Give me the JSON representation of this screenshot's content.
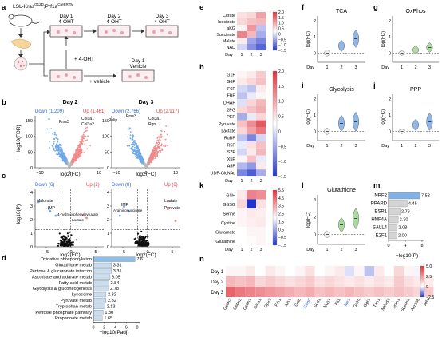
{
  "panel_labels": [
    "a",
    "b",
    "c",
    "d",
    "e",
    "f",
    "g",
    "h",
    "i",
    "j",
    "k",
    "l",
    "m",
    "n"
  ],
  "panel_a": {
    "mouse_genotype": "LSL-Kras",
    "genotype_sup1": "G12D",
    "genotype_mid": ";Prf1a",
    "genotype_sup2": "CreERTM",
    "day1": "Day 1",
    "day2": "Day 2",
    "day3": "Day 3",
    "treat": "4-OHT",
    "plus_4oht": "+ 4-OHT",
    "plus_vehicle": "+ vehicle",
    "vehicle": "Vehicle"
  },
  "panel_b": {
    "title_left": "Day 2",
    "title_right": "Day 3",
    "down_left": "Down (1,209)",
    "up_left": "Up (1,461)",
    "down_right": "Down (2,766)",
    "up_right": "Up (2,917)",
    "genes_left": [
      "Prss3",
      "Col1a1",
      "Col3a2"
    ],
    "genes_right": [
      "Pnlip",
      "Prss3",
      "Col3a1",
      "Rgn"
    ],
    "ylabel": "−log10(FDR)",
    "xlabel": "log2(FC)",
    "xticks": [
      "−10",
      "0",
      "10"
    ],
    "yticks": [
      "0",
      "50",
      "100",
      "150"
    ]
  },
  "panel_c": {
    "down_left": "Down (6)",
    "up_left": "Up (2)",
    "down_right": "Down (8)",
    "up_right": "Up (6)",
    "labels_left": [
      "Malonate",
      "IMP",
      "4-hydroxyphenylpyruvate",
      "Lactate"
    ],
    "labels_right": [
      "Argininosuccinate",
      "IMP",
      "Lactate",
      "Pyruvate"
    ],
    "ylabel": "−log10(P)",
    "xlabel": "log2(FC)",
    "xticks_left": [
      "−5",
      "0",
      "5"
    ],
    "xticks_right": [
      "−5",
      "0",
      "5"
    ],
    "yticks": [
      "0",
      "1",
      "2",
      "3",
      "4"
    ]
  },
  "panel_d": {
    "xlabel": "−log10(Padj)",
    "xticks": [
      "0",
      "2",
      "4",
      "6",
      "8"
    ],
    "chart_data": {
      "type": "bar",
      "categories": [
        "Oxidative phosphorylation",
        "Glutathione metab",
        "Pentose & glucuronate intercon",
        "Ascorbate and aldarate metab",
        "Fatty acid metab",
        "Glycolysis & gluconeogenesis",
        "Lysosome",
        "Pyruvate metab",
        "Tryptophan metab",
        "Pentose phosphate pathway",
        "Propanoate metab"
      ],
      "values": [
        7.61,
        3.31,
        3.31,
        3.05,
        2.84,
        2.78,
        2.32,
        2.32,
        2.13,
        1.8,
        1.65
      ],
      "value_labels": [
        "7.61",
        "3.31",
        "3.31",
        "3.05",
        "2.84",
        "2.78",
        "2.32",
        "2.32",
        "2.13",
        "1.80",
        "1.65"
      ],
      "xlim": [
        0,
        8
      ]
    }
  },
  "panel_e": {
    "rows": [
      "Citrate",
      "Isocitrate",
      "aKG",
      "Succinate",
      "Malate",
      "NAD"
    ],
    "xlabel": "Day",
    "days": [
      "1",
      "2",
      "3"
    ],
    "cbar_ticks": [
      "2.0",
      "1.5",
      "1.0",
      "0.5",
      "0",
      "−0.5",
      "−1.0",
      "−1.5"
    ]
  },
  "panel_h": {
    "rows": [
      "G1P",
      "G6P",
      "F6P",
      "FBP",
      "DHAP",
      "2PG",
      "PEP",
      "Pyruvate",
      "Lactate",
      "RuBP",
      "R5P",
      "S7P",
      "X5P",
      "A5P",
      "UDP-GlcNAc"
    ],
    "xlabel": "Day",
    "days": [
      "1",
      "2",
      "3"
    ],
    "cbar_ticks": [
      "2.0",
      "1.5",
      "1.0",
      "0.5",
      "0",
      "−0.5",
      "−1.0",
      "−1.5"
    ]
  },
  "panel_k": {
    "rows": [
      "GSH",
      "GSSG",
      "Serine",
      "Cystine",
      "Glutamate",
      "Glutamine"
    ],
    "xlabel": "Day",
    "days": [
      "1",
      "2",
      "3"
    ],
    "cbar_ticks": [
      "5.5",
      "4.5",
      "3.5",
      "2.5",
      "1.5",
      "0.5",
      "−0.5",
      "−1.5"
    ]
  },
  "violins": {
    "f": {
      "title": "TCA",
      "yticks": [
        "0",
        "1",
        "2"
      ]
    },
    "g": {
      "title": "OxPhos",
      "yticks": [
        "0",
        "1",
        "2"
      ]
    },
    "i": {
      "title": "Glycolysis",
      "yticks": [
        "0",
        "1",
        "2"
      ]
    },
    "j": {
      "title": "PPP",
      "yticks": [
        "0",
        "1",
        "2"
      ]
    },
    "l": {
      "title": "Glutathione",
      "yticks": [
        "0",
        "2",
        "4"
      ]
    },
    "ylabel": "log(FC)",
    "xlabel": "Day",
    "days": [
      "1",
      "2",
      "3"
    ]
  },
  "panel_m": {
    "xlabel": "−log10(P)",
    "xticks": [
      "0",
      "4",
      "8"
    ],
    "chart_data": {
      "type": "bar",
      "categories": [
        "NRF2",
        "PPARD",
        "ESR1",
        "HNF4A",
        "SALL4",
        "E2F1"
      ],
      "values": [
        7.52,
        4.45,
        2.76,
        2.3,
        2.08,
        2.0
      ],
      "value_labels": [
        "7.52",
        "4.45",
        "2.76",
        "2.30",
        "2.08",
        "2.00"
      ],
      "xlim": [
        0,
        8
      ],
      "colors": {
        "highlight": "#7fb2e8",
        "other": "#d4d4d4"
      }
    }
  },
  "panel_n": {
    "days": [
      "Day 1",
      "Day 2",
      "Day 3"
    ],
    "genes": [
      "Gstm3",
      "Gstm2",
      "Gstm1",
      "Gsta1",
      "Gpx2",
      "Fth1",
      "Idh1",
      "Gclc",
      "G6pd",
      "Sod1",
      "Nqo1",
      "Ftl1",
      "Me1",
      "Gclm",
      "Ggt1",
      "Txn1",
      "Mthfd2",
      "Srxn1",
      "Sqstm1",
      "Akr1b8",
      "Atf4"
    ],
    "blue_genes": [
      "G6pd",
      "Me1"
    ],
    "cbar_ticks": [
      "5.0",
      "2.5",
      "0",
      "−2.5"
    ]
  },
  "colors": {
    "down": "#6fa8e6",
    "up": "#f08a8a",
    "violin": "#a9dba0",
    "bar_d": "#8fbfe8"
  }
}
